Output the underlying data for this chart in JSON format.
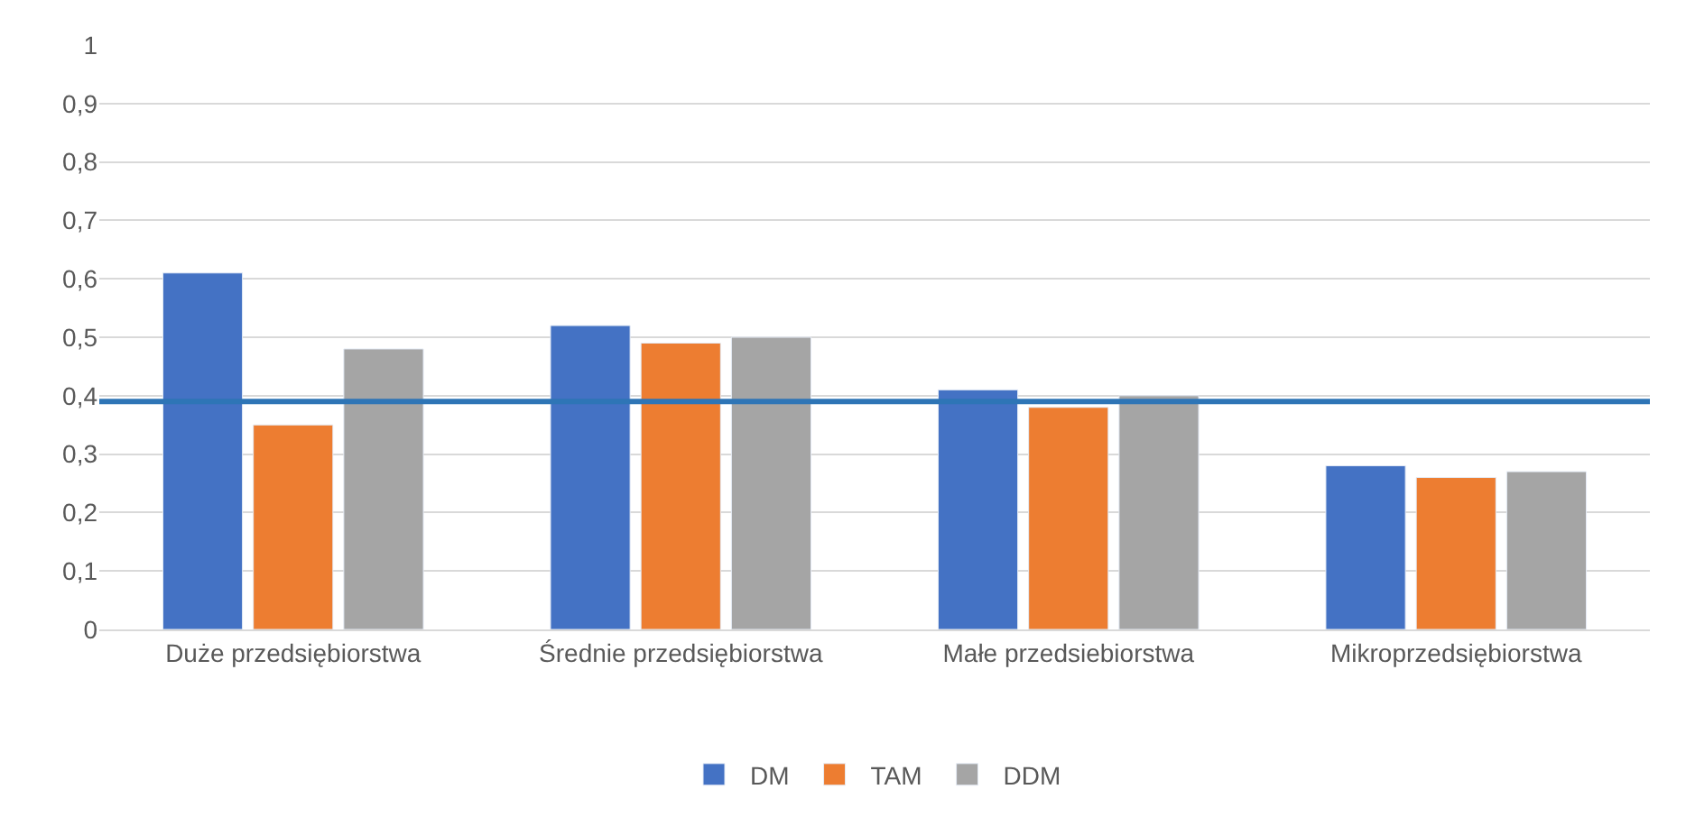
{
  "chart_data": {
    "type": "bar",
    "categories": [
      "Duże przedsiębiorstwa",
      "Średnie przedsiębiorstwa",
      "Małe przedsiebiorstwa",
      "Mikroprzedsiębiorstwa"
    ],
    "series": [
      {
        "name": "DM",
        "color": "#4472c4",
        "values": [
          0.61,
          0.52,
          0.41,
          0.28
        ]
      },
      {
        "name": "TAM",
        "color": "#ed7d31",
        "values": [
          0.35,
          0.49,
          0.38,
          0.26
        ]
      },
      {
        "name": "DDM",
        "color": "#a5a5a5",
        "values": [
          0.48,
          0.5,
          0.4,
          0.27
        ]
      }
    ],
    "ylim": [
      0,
      1
    ],
    "yticks": [
      0,
      {
        "value": 0.1,
        "label": "0,1"
      },
      {
        "value": 0.2,
        "label": "0,2"
      },
      {
        "value": 0.3,
        "label": "0,3"
      },
      {
        "value": 0.4,
        "label": "0,4"
      },
      {
        "value": 0.5,
        "label": "0,5"
      },
      {
        "value": 0.6,
        "label": "0,6"
      },
      {
        "value": 0.7,
        "label": "0,7"
      },
      {
        "value": 0.8,
        "label": "0,8"
      },
      {
        "value": 0.9,
        "label": "0,9"
      },
      1
    ],
    "ref_lines": [
      {
        "axis": "y",
        "value": 0.39,
        "color": "#2e75b6",
        "line_style": "solid"
      }
    ],
    "grid": "y",
    "legend": "bottom"
  }
}
